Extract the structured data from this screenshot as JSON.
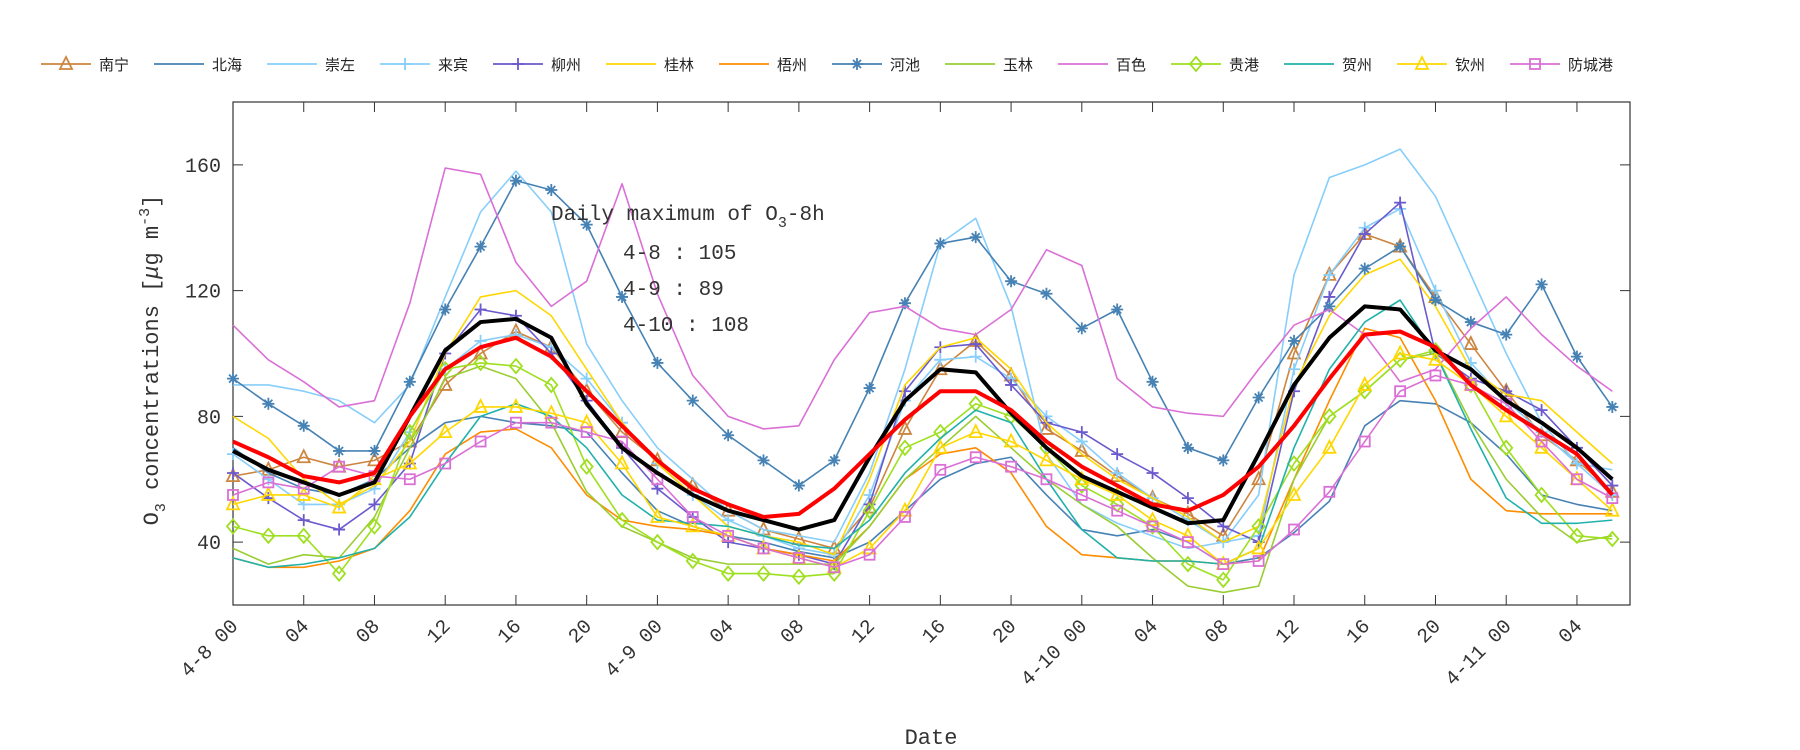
{
  "chart_data": {
    "type": "line",
    "title": "",
    "xlabel": "Date",
    "ylabel": "O3 concentrations [μg m-3]",
    "ylabel_parts": {
      "base": "O",
      "sub": "3",
      "mid": " concentrations [",
      "mu": "μ",
      "unit": "g m",
      "sup": "-3",
      "end": "]"
    },
    "ylim": [
      20,
      180
    ],
    "xlim": [
      "4-8 00",
      "4-11 07"
    ],
    "yticks": [
      40,
      80,
      120,
      160
    ],
    "xticks": [
      "4-8 00",
      "04",
      "08",
      "12",
      "16",
      "20",
      "4-9 00",
      "04",
      "08",
      "12",
      "16",
      "20",
      "4-10 00",
      "04",
      "08",
      "12",
      "16",
      "20",
      "4-11 00",
      "04"
    ],
    "legend_position": "top",
    "grid": false,
    "annotation": {
      "title": "Daily maximum of O3-8h",
      "title_base": "Daily maximum of O",
      "title_sub": "3",
      "title_end": "-8h",
      "lines": [
        "4-8 : 105",
        "4-9 : 89",
        "4-10 : 108"
      ]
    },
    "x": [
      "4-8 00",
      "4-8 02",
      "4-8 04",
      "4-8 06",
      "4-8 08",
      "4-8 10",
      "4-8 12",
      "4-8 14",
      "4-8 16",
      "4-8 18",
      "4-8 20",
      "4-8 22",
      "4-9 00",
      "4-9 02",
      "4-9 04",
      "4-9 06",
      "4-9 08",
      "4-9 10",
      "4-9 12",
      "4-9 14",
      "4-9 16",
      "4-9 18",
      "4-9 20",
      "4-9 22",
      "4-10 00",
      "4-10 02",
      "4-10 04",
      "4-10 06",
      "4-10 08",
      "4-10 10",
      "4-10 12",
      "4-10 14",
      "4-10 16",
      "4-10 18",
      "4-10 20",
      "4-10 22",
      "4-11 00",
      "4-11 02",
      "4-11 04",
      "4-11 06"
    ],
    "series": [
      {
        "name": "南宁",
        "color": "#cd853f",
        "marker": "triangle",
        "values": [
          61,
          63,
          67,
          64,
          66,
          72,
          90,
          100,
          107,
          102,
          88,
          75,
          66,
          58,
          50,
          44,
          41,
          38,
          51,
          76,
          95,
          104,
          93,
          76,
          69,
          61,
          54,
          49,
          42,
          60,
          100,
          125,
          138,
          134,
          118,
          103,
          88,
          74,
          66,
          56
        ]
      },
      {
        "name": "北海",
        "color": "#4682b4",
        "marker": "none",
        "values": [
          70,
          62,
          57,
          55,
          60,
          70,
          78,
          80,
          78,
          77,
          75,
          62,
          50,
          45,
          42,
          40,
          37,
          35,
          40,
          50,
          60,
          65,
          67,
          55,
          44,
          42,
          44,
          40,
          33,
          35,
          43,
          53,
          77,
          85,
          84,
          78,
          68,
          55,
          52,
          50
        ]
      },
      {
        "name": "崇左",
        "color": "#87cefa",
        "marker": "none",
        "values": [
          90,
          90,
          88,
          85,
          78,
          90,
          118,
          145,
          158,
          145,
          103,
          85,
          70,
          60,
          50,
          44,
          42,
          40,
          62,
          95,
          135,
          143,
          115,
          68,
          52,
          46,
          42,
          38,
          40,
          55,
          125,
          156,
          160,
          165,
          150,
          125,
          100,
          78,
          65,
          63
        ]
      },
      {
        "name": "来宾",
        "color": "#87cefa",
        "marker": "plus",
        "values": [
          68,
          60,
          52,
          52,
          57,
          75,
          95,
          104,
          106,
          102,
          92,
          78,
          65,
          55,
          47,
          42,
          38,
          36,
          55,
          85,
          98,
          99,
          92,
          80,
          72,
          62,
          54,
          47,
          40,
          42,
          95,
          125,
          140,
          146,
          120,
          97,
          85,
          75,
          65,
          55
        ]
      },
      {
        "name": "柳州",
        "color": "#6a5acd",
        "marker": "plus",
        "values": [
          62,
          54,
          47,
          44,
          52,
          65,
          100,
          114,
          112,
          100,
          85,
          70,
          57,
          48,
          40,
          38,
          36,
          33,
          52,
          88,
          102,
          103,
          90,
          78,
          75,
          68,
          62,
          54,
          45,
          40,
          88,
          118,
          138,
          148,
          100,
          92,
          88,
          82,
          70,
          58
        ]
      },
      {
        "name": "桂林",
        "color": "#ffd700",
        "marker": "none",
        "values": [
          80,
          73,
          60,
          52,
          58,
          72,
          100,
          118,
          120,
          112,
          95,
          78,
          65,
          55,
          45,
          42,
          40,
          36,
          60,
          90,
          102,
          105,
          95,
          78,
          68,
          60,
          54,
          48,
          40,
          45,
          90,
          112,
          125,
          130,
          115,
          95,
          87,
          85,
          75,
          65
        ]
      },
      {
        "name": "梧州",
        "color": "#ff8c00",
        "marker": "none",
        "values": [
          35,
          32,
          32,
          34,
          38,
          50,
          68,
          75,
          76,
          70,
          55,
          47,
          45,
          44,
          42,
          38,
          36,
          34,
          45,
          60,
          68,
          70,
          62,
          45,
          36,
          35,
          34,
          34,
          33,
          34,
          60,
          85,
          108,
          105,
          85,
          60,
          50,
          49,
          49,
          49
        ]
      },
      {
        "name": "河池",
        "color": "#4682b4",
        "marker": "asterisk",
        "values": [
          92,
          84,
          77,
          69,
          69,
          91,
          114,
          134,
          155,
          152,
          141,
          118,
          97,
          85,
          74,
          66,
          58,
          66,
          89,
          116,
          135,
          137,
          123,
          119,
          108,
          114,
          91,
          70,
          66,
          86,
          104,
          115,
          127,
          134,
          117,
          110,
          106,
          122,
          99,
          83
        ]
      },
      {
        "name": "玉林",
        "color": "#9acd32",
        "marker": "none",
        "values": [
          38,
          33,
          36,
          35,
          48,
          70,
          92,
          96,
          92,
          78,
          56,
          45,
          40,
          35,
          33,
          33,
          33,
          33,
          45,
          60,
          70,
          80,
          70,
          60,
          52,
          45,
          35,
          26,
          24,
          26,
          60,
          80,
          88,
          98,
          100,
          78,
          60,
          48,
          40,
          42
        ]
      },
      {
        "name": "百色",
        "color": "#da70d6",
        "marker": "none",
        "values": [
          109,
          98,
          91,
          83,
          85,
          116,
          159,
          157,
          129,
          115,
          123,
          154,
          119,
          93,
          80,
          76,
          77,
          98,
          113,
          115,
          108,
          106,
          114,
          133,
          128,
          92,
          83,
          81,
          80,
          95,
          109,
          114,
          106,
          91,
          95,
          108,
          118,
          106,
          96,
          88
        ]
      },
      {
        "name": "贵港",
        "color": "#9ee01f",
        "marker": "diamond",
        "values": [
          45,
          42,
          42,
          30,
          45,
          75,
          95,
          97,
          96,
          90,
          64,
          47,
          40,
          34,
          30,
          30,
          29,
          30,
          50,
          70,
          75,
          84,
          80,
          70,
          58,
          52,
          45,
          33,
          28,
          45,
          65,
          80,
          88,
          98,
          101,
          90,
          70,
          55,
          42,
          41
        ]
      },
      {
        "name": "贺州",
        "color": "#20b2aa",
        "marker": "none",
        "values": [
          35,
          32,
          33,
          35,
          38,
          48,
          65,
          80,
          84,
          80,
          70,
          55,
          47,
          46,
          45,
          42,
          39,
          38,
          47,
          62,
          73,
          82,
          78,
          60,
          44,
          35,
          34,
          34,
          33,
          38,
          70,
          95,
          110,
          117,
          100,
          76,
          54,
          46,
          46,
          47
        ]
      },
      {
        "name": "钦州",
        "color": "#ffd700",
        "marker": "triangle",
        "values": [
          52,
          55,
          55,
          51,
          60,
          65,
          75,
          83,
          83,
          81,
          78,
          65,
          48,
          45,
          42,
          38,
          35,
          32,
          38,
          50,
          70,
          75,
          72,
          66,
          60,
          55,
          47,
          42,
          33,
          38,
          55,
          70,
          90,
          100,
          98,
          90,
          80,
          70,
          60,
          50
        ]
      },
      {
        "name": "防城港",
        "color": "#da70d6",
        "marker": "square",
        "values": [
          55,
          59,
          57,
          64,
          61,
          60,
          65,
          72,
          78,
          78,
          75,
          72,
          60,
          48,
          42,
          38,
          35,
          32,
          36,
          48,
          63,
          67,
          64,
          60,
          55,
          50,
          45,
          40,
          33,
          34,
          44,
          56,
          72,
          88,
          93,
          90,
          84,
          72,
          60,
          54
        ]
      },
      {
        "color": "#000000",
        "marker": "none",
        "emphasis": true,
        "values": [
          69,
          63,
          59,
          55,
          59,
          80,
          101,
          110,
          111,
          105,
          84,
          70,
          62,
          55,
          50,
          47,
          44,
          47,
          67,
          85,
          95,
          94,
          81,
          70,
          61,
          56,
          51,
          46,
          47,
          68,
          90,
          105,
          115,
          114,
          101,
          95,
          85,
          78,
          70,
          60
        ]
      },
      {
        "color": "#ff0000",
        "marker": "none",
        "emphasis": true,
        "values": [
          72,
          67,
          61,
          59,
          62,
          80,
          95,
          102,
          105,
          99,
          88,
          77,
          66,
          57,
          52,
          48,
          49,
          57,
          68,
          79,
          88,
          88,
          82,
          72,
          64,
          58,
          52,
          50,
          55,
          64,
          77,
          92,
          106,
          107,
          102,
          90,
          82,
          75,
          68,
          55
        ]
      }
    ]
  }
}
